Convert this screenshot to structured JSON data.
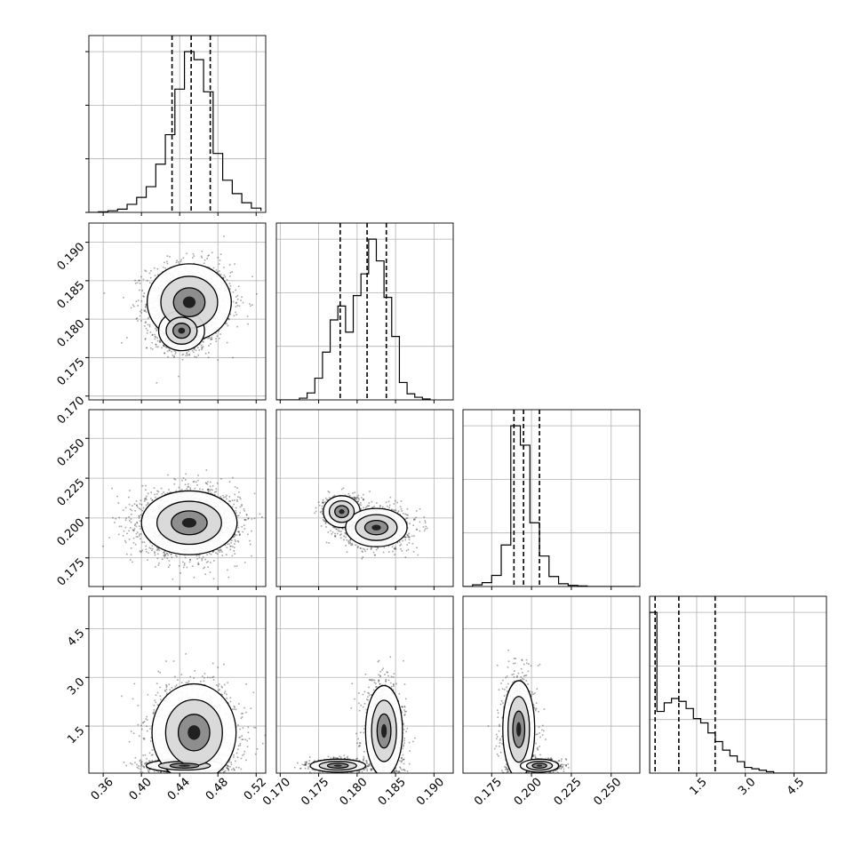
{
  "chart_data": {
    "type": "corner",
    "title": "",
    "grid": true,
    "parameters": [
      {
        "range": [
          0.345,
          0.53
        ],
        "ticks": [
          "0.36",
          "0.40",
          "0.44",
          "0.48",
          "0.52"
        ],
        "tick_values": [
          0.36,
          0.4,
          0.44,
          0.48,
          0.52
        ],
        "quantiles": [
          0.432,
          0.452,
          0.472
        ]
      },
      {
        "range": [
          0.1695,
          0.1925
        ],
        "ticks": [
          "0.170",
          "0.175",
          "0.180",
          "0.185",
          "0.190"
        ],
        "tick_values": [
          0.17,
          0.175,
          0.18,
          0.185,
          0.19
        ],
        "quantiles": [
          0.1778,
          0.1813,
          0.1838
        ]
      },
      {
        "range": [
          0.157,
          0.268
        ],
        "ticks": [
          "0.175",
          "0.200",
          "0.225",
          "0.250"
        ],
        "tick_values": [
          0.175,
          0.2,
          0.225,
          0.25
        ],
        "quantiles": [
          0.189,
          0.195,
          0.205
        ]
      },
      {
        "range": [
          0.05,
          5.5
        ],
        "ticks": [
          "1.5",
          "3.0",
          "4.5"
        ],
        "tick_values": [
          1.5,
          3.0,
          4.5
        ],
        "quantiles": [
          0.22,
          0.95,
          2.07
        ]
      }
    ],
    "histograms": [
      {
        "bins": [
          0.345,
          0.355,
          0.365,
          0.375,
          0.385,
          0.395,
          0.405,
          0.415,
          0.425,
          0.435,
          0.445,
          0.455,
          0.465,
          0.475,
          0.485,
          0.495,
          0.505,
          0.515,
          0.525
        ],
        "counts": [
          0,
          1,
          3,
          6,
          15,
          28,
          48,
          90,
          145,
          230,
          300,
          285,
          225,
          110,
          60,
          35,
          18,
          8,
          3
        ]
      },
      {
        "bins": [
          0.1695,
          0.1705,
          0.1715,
          0.1725,
          0.1735,
          0.1745,
          0.1755,
          0.1765,
          0.1775,
          0.1785,
          0.1795,
          0.1805,
          0.1815,
          0.1825,
          0.1835,
          0.1845,
          0.1855,
          0.1865,
          0.1875,
          0.1885,
          0.1895
        ],
        "counts": [
          0,
          0,
          0,
          2,
          8,
          25,
          55,
          92,
          108,
          78,
          120,
          145,
          185,
          160,
          118,
          73,
          20,
          7,
          3,
          1
        ]
      },
      {
        "bins": [
          0.157,
          0.163,
          0.169,
          0.175,
          0.181,
          0.187,
          0.193,
          0.199,
          0.205,
          0.211,
          0.217,
          0.223,
          0.229,
          0.235,
          0.241,
          0.247,
          0.253,
          0.259,
          0.265
        ],
        "counts": [
          0,
          3,
          7,
          20,
          75,
          290,
          255,
          115,
          55,
          18,
          5,
          2,
          1,
          0,
          0,
          0,
          0,
          0
        ]
      },
      {
        "bins": [
          0.05,
          0.275,
          0.5,
          0.725,
          0.95,
          1.175,
          1.4,
          1.625,
          1.85,
          2.075,
          2.3,
          2.525,
          2.75,
          2.975,
          3.2,
          3.425,
          3.65,
          3.875,
          4.1,
          4.325,
          4.55,
          4.775,
          5.0,
          5.225,
          5.45
        ],
        "counts": [
          112,
          43,
          49,
          52,
          50,
          45,
          38,
          35,
          28,
          22,
          16,
          12,
          8,
          4,
          3,
          2,
          1,
          0,
          0,
          0,
          0,
          0,
          0,
          0
        ]
      }
    ],
    "pairs": [
      {
        "row": 1,
        "col": 0,
        "modes": [
          {
            "cx": 0.45,
            "cy": 0.1822,
            "sx": 0.022,
            "sy": 0.0025,
            "w": 0.65
          },
          {
            "cx": 0.442,
            "cy": 0.1785,
            "sx": 0.012,
            "sy": 0.0013,
            "w": 0.35
          }
        ]
      },
      {
        "row": 2,
        "col": 0,
        "modes": [
          {
            "cx": 0.45,
            "cy": 0.197,
            "sx": 0.025,
            "sy": 0.01,
            "w": 1.0
          }
        ]
      },
      {
        "row": 2,
        "col": 1,
        "modes": [
          {
            "cx": 0.178,
            "cy": 0.204,
            "sx": 0.0012,
            "sy": 0.005,
            "w": 0.35
          },
          {
            "cx": 0.1825,
            "cy": 0.194,
            "sx": 0.002,
            "sy": 0.006,
            "w": 0.65
          }
        ]
      },
      {
        "row": 3,
        "col": 0,
        "modes": [
          {
            "cx": 0.445,
            "cy": 0.28,
            "sx": 0.02,
            "sy": 0.1,
            "w": 0.35
          },
          {
            "cx": 0.455,
            "cy": 1.3,
            "sx": 0.022,
            "sy": 0.75,
            "w": 0.65
          }
        ]
      },
      {
        "row": 3,
        "col": 1,
        "modes": [
          {
            "cx": 0.1775,
            "cy": 0.28,
            "sx": 0.0018,
            "sy": 0.1,
            "w": 0.35
          },
          {
            "cx": 0.1835,
            "cy": 1.35,
            "sx": 0.0012,
            "sy": 0.7,
            "w": 0.65
          }
        ]
      },
      {
        "row": 3,
        "col": 2,
        "modes": [
          {
            "cx": 0.192,
            "cy": 1.4,
            "sx": 0.005,
            "sy": 0.75,
            "w": 0.6
          },
          {
            "cx": 0.205,
            "cy": 0.28,
            "sx": 0.006,
            "sy": 0.1,
            "w": 0.4
          }
        ]
      }
    ]
  }
}
